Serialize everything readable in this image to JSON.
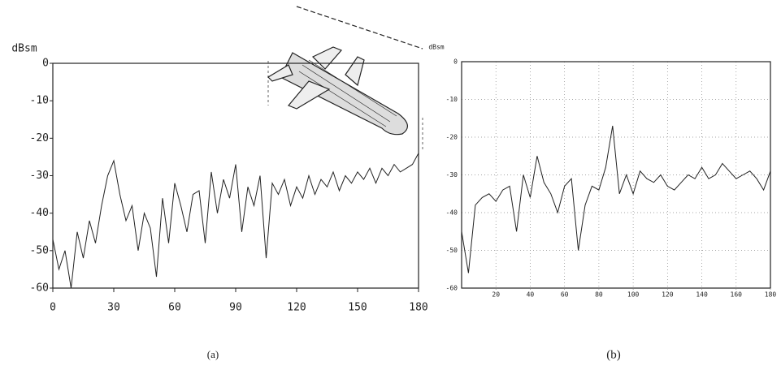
{
  "chart_data": [
    {
      "type": "line",
      "ylabel": "dBsm",
      "caption": "(a)",
      "color": "#222",
      "x": [
        0,
        3,
        6,
        9,
        12,
        15,
        18,
        21,
        24,
        27,
        30,
        33,
        36,
        39,
        42,
        45,
        48,
        51,
        54,
        57,
        60,
        63,
        66,
        69,
        72,
        75,
        78,
        81,
        84,
        87,
        90,
        93,
        96,
        99,
        102,
        105,
        108,
        111,
        114,
        117,
        120,
        123,
        126,
        129,
        132,
        135,
        138,
        141,
        144,
        147,
        150,
        153,
        156,
        159,
        162,
        165,
        168,
        171,
        174,
        177,
        180
      ],
      "values": [
        -47,
        -55,
        -50,
        -60,
        -45,
        -52,
        -42,
        -48,
        -38,
        -30,
        -26,
        -35,
        -42,
        -38,
        -50,
        -40,
        -44,
        -57,
        -36,
        -48,
        -32,
        -38,
        -45,
        -35,
        -34,
        -48,
        -29,
        -40,
        -31,
        -36,
        -27,
        -45,
        -33,
        -38,
        -30,
        -52,
        -32,
        -35,
        -31,
        -38,
        -33,
        -36,
        -30,
        -35,
        -31,
        -33,
        -29,
        -34,
        -30,
        -32,
        -29,
        -31,
        -28,
        -32,
        -28,
        -30,
        -27,
        -29,
        -28,
        -27,
        -24
      ],
      "xlim": [
        0,
        180
      ],
      "xticks": [
        0,
        30,
        60,
        90,
        120,
        150,
        180
      ],
      "ylim": [
        -60,
        0
      ],
      "yticks": [
        0,
        -10,
        -20,
        -30,
        -40,
        -50,
        -60
      ],
      "grid": false
    },
    {
      "type": "line",
      "ylabel": "dBsm",
      "caption": "(b)",
      "color": "#222",
      "x": [
        0,
        4,
        8,
        12,
        16,
        20,
        24,
        28,
        32,
        36,
        40,
        44,
        48,
        52,
        56,
        60,
        64,
        68,
        72,
        76,
        80,
        84,
        88,
        92,
        96,
        100,
        104,
        108,
        112,
        116,
        120,
        124,
        128,
        132,
        136,
        140,
        144,
        148,
        152,
        156,
        160,
        164,
        168,
        172,
        176,
        180
      ],
      "values": [
        -45,
        -56,
        -38,
        -36,
        -35,
        -37,
        -34,
        -33,
        -45,
        -30,
        -36,
        -25,
        -32,
        -35,
        -40,
        -33,
        -31,
        -50,
        -38,
        -33,
        -34,
        -28,
        -17,
        -35,
        -30,
        -35,
        -29,
        -31,
        -32,
        -30,
        -33,
        -34,
        -32,
        -30,
        -31,
        -28,
        -31,
        -30,
        -27,
        -29,
        -31,
        -30,
        -29,
        -31,
        -34,
        -29
      ],
      "xlim": [
        0,
        180
      ],
      "xticks": [
        20,
        40,
        60,
        80,
        100,
        120,
        140,
        160,
        180
      ],
      "ylim": [
        -60,
        0
      ],
      "yticks": [
        0,
        -10,
        -20,
        -30,
        -40,
        -50,
        -60
      ],
      "grid": true
    }
  ]
}
